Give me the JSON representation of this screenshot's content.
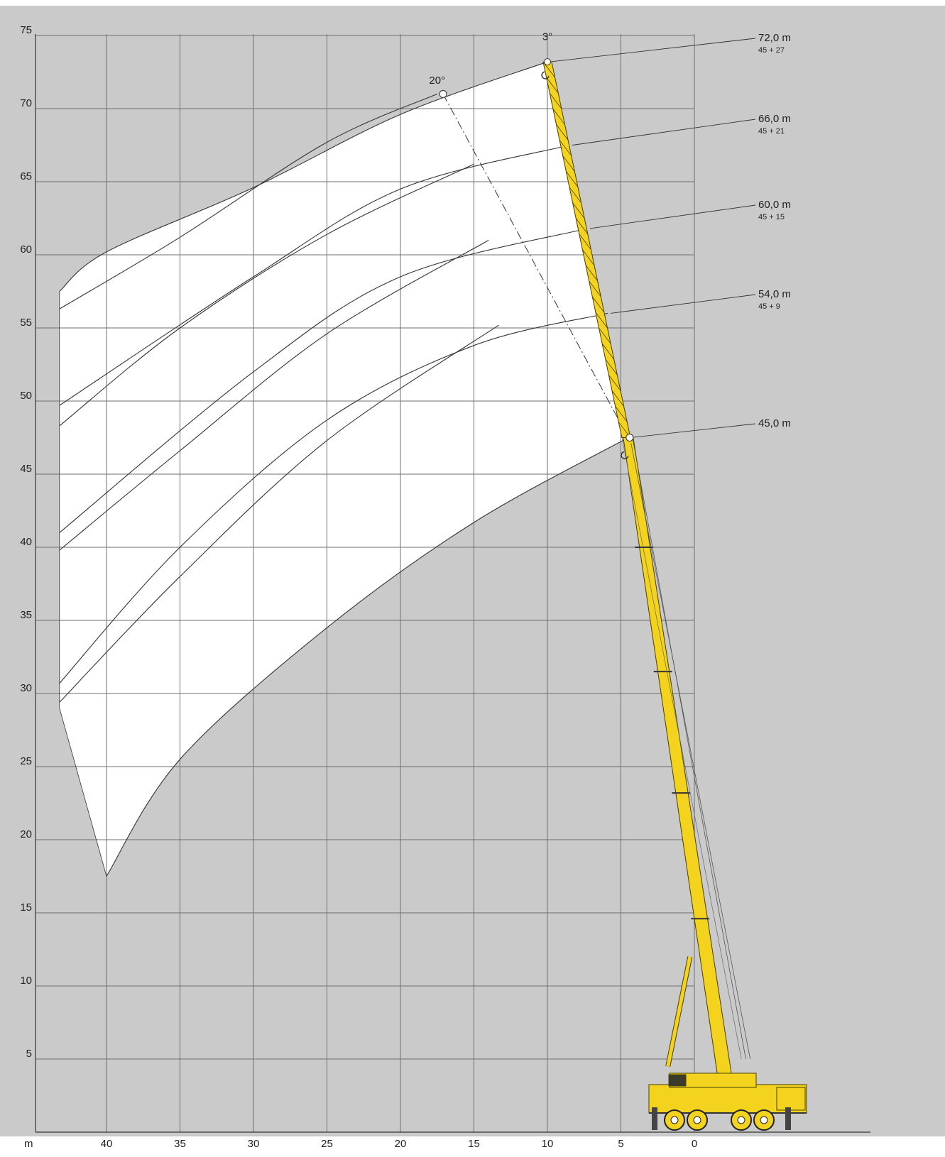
{
  "chart_data": {
    "type": "line",
    "title": "",
    "x_unit": "m",
    "xlabel": "",
    "ylabel": "",
    "xlim": [
      44,
      -4
    ],
    "ylim": [
      0,
      75
    ],
    "x_ticks": [
      "40",
      "35",
      "30",
      "25",
      "20",
      "15",
      "10",
      "5",
      "0"
    ],
    "y_ticks": [
      "5",
      "10",
      "15",
      "20",
      "25",
      "30",
      "35",
      "40",
      "45",
      "50",
      "55",
      "60",
      "65",
      "70",
      "75"
    ],
    "grid": true,
    "colors": {
      "background": "#cacaca",
      "envelope": "#ffffff",
      "grid": "#6f6f6f",
      "curve": "#333333",
      "crane": "#f3d31e",
      "crane_outline": "#4a4000"
    },
    "angle_labels": [
      {
        "text": "3°",
        "x": 10,
        "y": 74.5
      },
      {
        "text": "20°",
        "x": 17.5,
        "y": 71.5
      }
    ],
    "boom_configurations": [
      {
        "label": "72,0 m",
        "sub": "45 + 27",
        "tip_x": 10,
        "tip_y": 73.2
      },
      {
        "label": "66,0 m",
        "sub": "45 + 21",
        "tip_x": 8.5,
        "tip_y": 67.5
      },
      {
        "label": "60,0 m",
        "sub": "45 + 15",
        "tip_x": 7.3,
        "tip_y": 61.8
      },
      {
        "label": "54,0 m",
        "sub": "45 + 9",
        "tip_x": 5.9,
        "tip_y": 56
      },
      {
        "label": "45,0 m",
        "sub": "",
        "tip_x": 4.5,
        "tip_y": 47.5
      }
    ],
    "series": [
      {
        "x": [
          10,
          20,
          30,
          40,
          43.2
        ],
        "y": [
          73.2,
          69.6,
          64.6,
          60.2,
          57.5
        ]
      },
      {
        "x": [
          17.5,
          25,
          35,
          43.2
        ],
        "y": [
          71,
          67.7,
          61.2,
          56.3
        ]
      },
      {
        "x": [
          8.5,
          20,
          30,
          43.2
        ],
        "y": [
          67.5,
          64.5,
          58.5,
          49.7
        ]
      },
      {
        "x": [
          15,
          25,
          35,
          43.2
        ],
        "y": [
          66.2,
          61.4,
          55,
          48.3
        ]
      },
      {
        "x": [
          7.3,
          20,
          30,
          43.2
        ],
        "y": [
          61.8,
          58.5,
          52,
          41
        ]
      },
      {
        "x": [
          14,
          25,
          35,
          43.2
        ],
        "y": [
          61,
          54.6,
          46.6,
          39.8
        ]
      },
      {
        "x": [
          5.9,
          15,
          25,
          35,
          43.2
        ],
        "y": [
          56,
          53.8,
          48.7,
          40,
          30.7
        ]
      },
      {
        "x": [
          13.3,
          25,
          35,
          43.2
        ],
        "y": [
          55.2,
          47.3,
          38,
          29.4
        ]
      },
      {
        "x": [
          4.5,
          15,
          25,
          35,
          40
        ],
        "y": [
          47.5,
          41.7,
          34.5,
          25.5,
          17.5
        ]
      }
    ]
  }
}
